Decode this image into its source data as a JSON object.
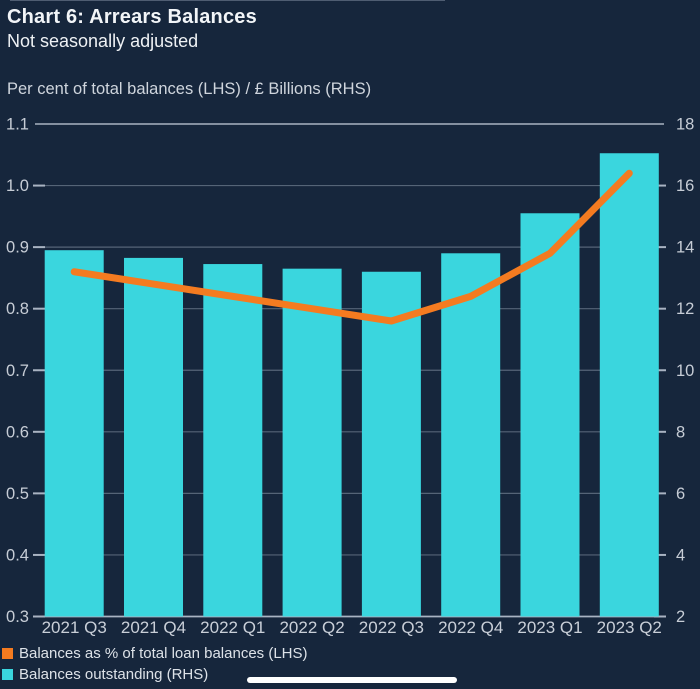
{
  "header": {
    "title": "Chart 6: Arrears Balances",
    "subtitle": "Not seasonally adjusted",
    "axis_heading": "Per cent of total balances (LHS) / £ Billions (RHS)"
  },
  "colors": {
    "background": "#16263c",
    "bar": "#3ad6de",
    "line": "#f47b20",
    "grid": "rgba(173,185,203,0.42)",
    "axis": "#a9b3c2",
    "tick_text": "#c7cdd6",
    "x_label_text": "#c9cfd8",
    "title_text": "#f2f5f8",
    "heading_text": "#cfd5dd",
    "legend_text": "#dde2e8",
    "scrollbar": "#ffffff"
  },
  "chart_data": {
    "type": "bar+line",
    "title": "Chart 6: Arrears Balances",
    "subtitle": "Not seasonally adjusted",
    "units_label": "Per cent of total balances (LHS) / £ Billions (RHS)",
    "categories": [
      "2021 Q3",
      "2021 Q4",
      "2022 Q1",
      "2022 Q2",
      "2022 Q3",
      "2022 Q4",
      "2023 Q1",
      "2023 Q2"
    ],
    "series": [
      {
        "name": "Balances as % of total loan balances (LHS)",
        "type": "line",
        "axis": "left",
        "color": "#f47b20",
        "values": [
          0.86,
          0.84,
          0.82,
          0.8,
          0.78,
          0.82,
          0.89,
          1.02
        ]
      },
      {
        "name": "Balances outstanding (RHS)",
        "type": "bar",
        "axis": "right",
        "color": "#3ad6de",
        "values": [
          13.9,
          13.65,
          13.45,
          13.3,
          13.2,
          13.8,
          15.1,
          17.05
        ]
      }
    ],
    "left_axis": {
      "min": 0.3,
      "max": 1.1,
      "ticks": [
        "1.1",
        "1.0",
        "0.9",
        "0.8",
        "0.7",
        "0.6",
        "0.5",
        "0.4",
        "0.3"
      ]
    },
    "right_axis": {
      "min": 2,
      "max": 18,
      "ticks": [
        "18",
        "16",
        "14",
        "12",
        "10",
        "8",
        "6",
        "4",
        "2"
      ]
    },
    "grid": true,
    "legend_position": "bottom-left"
  }
}
